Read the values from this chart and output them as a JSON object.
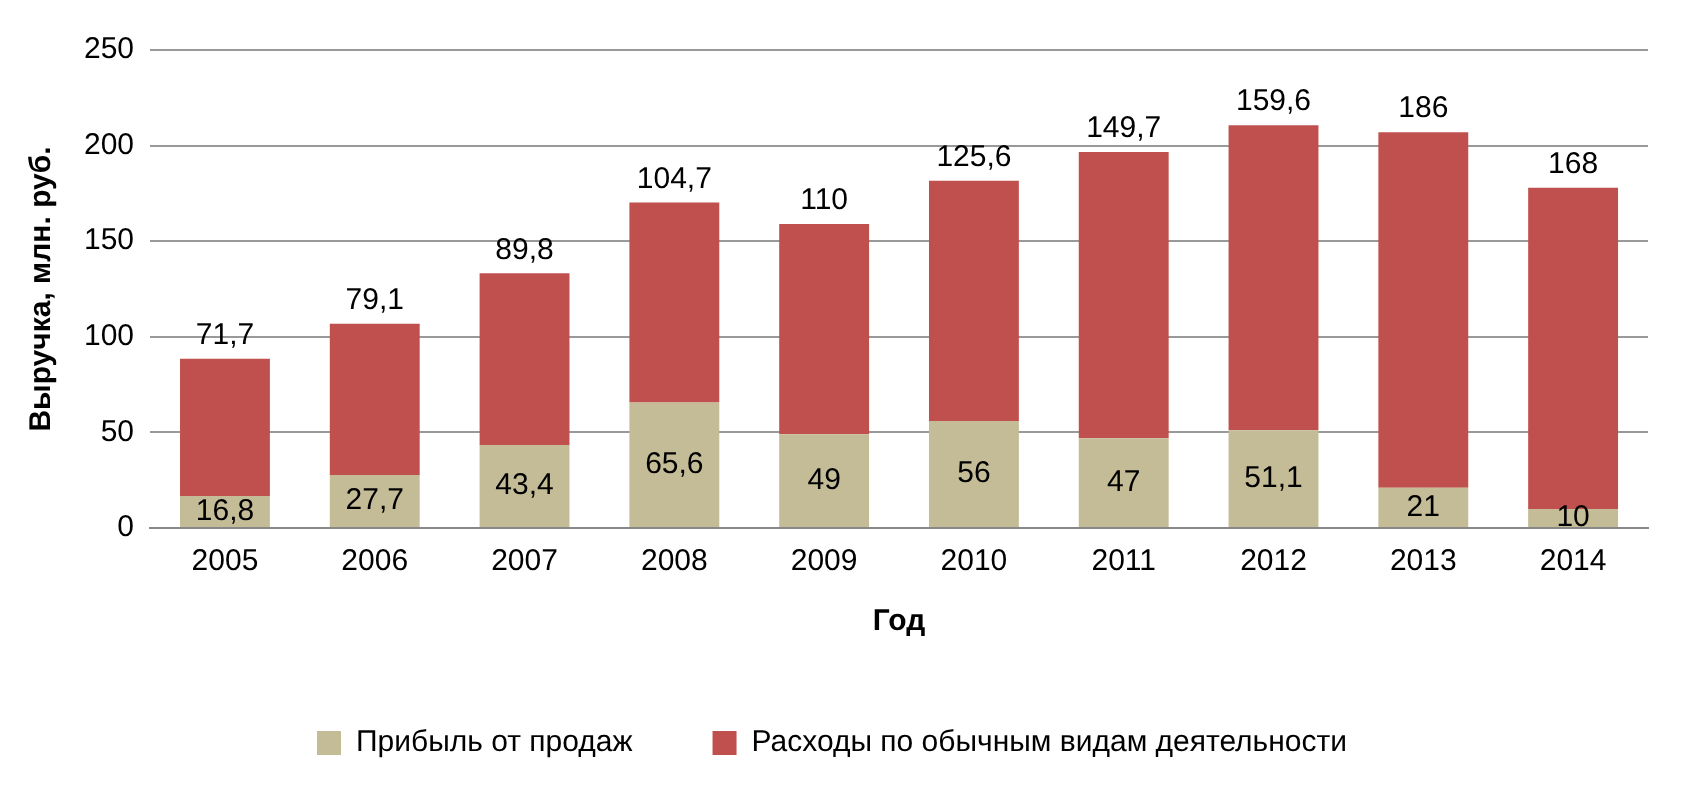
{
  "chart_data": {
    "type": "bar",
    "stacked": true,
    "xlabel": "Год",
    "ylabel": "Выручка, млн. руб.",
    "categories": [
      "2005",
      "2006",
      "2007",
      "2008",
      "2009",
      "2010",
      "2011",
      "2012",
      "2013",
      "2014"
    ],
    "series": [
      {
        "name": "Прибыль от продаж",
        "color": "#c4bc96",
        "values": [
          16.8,
          27.7,
          43.4,
          65.6,
          49,
          56,
          47,
          51.1,
          21,
          10
        ],
        "value_labels": [
          "16,8",
          "27,7",
          "43,4",
          "65,6",
          "49",
          "56",
          "47",
          "51,1",
          "21",
          "10"
        ]
      },
      {
        "name": "Расходы по обычным видам деятельности",
        "color": "#c0504d",
        "values": [
          71.7,
          79.1,
          89.8,
          104.7,
          110,
          125.6,
          149.7,
          159.6,
          186,
          168
        ],
        "value_labels": [
          "71,7",
          "79,1",
          "89,8",
          "104,7",
          "110",
          "125,6",
          "149,7",
          "159,6",
          "186",
          "168"
        ]
      }
    ],
    "ylim": [
      0,
      250
    ],
    "yticks": [
      0,
      50,
      100,
      150,
      200,
      250
    ],
    "grid": "y",
    "legend": "bottom"
  }
}
